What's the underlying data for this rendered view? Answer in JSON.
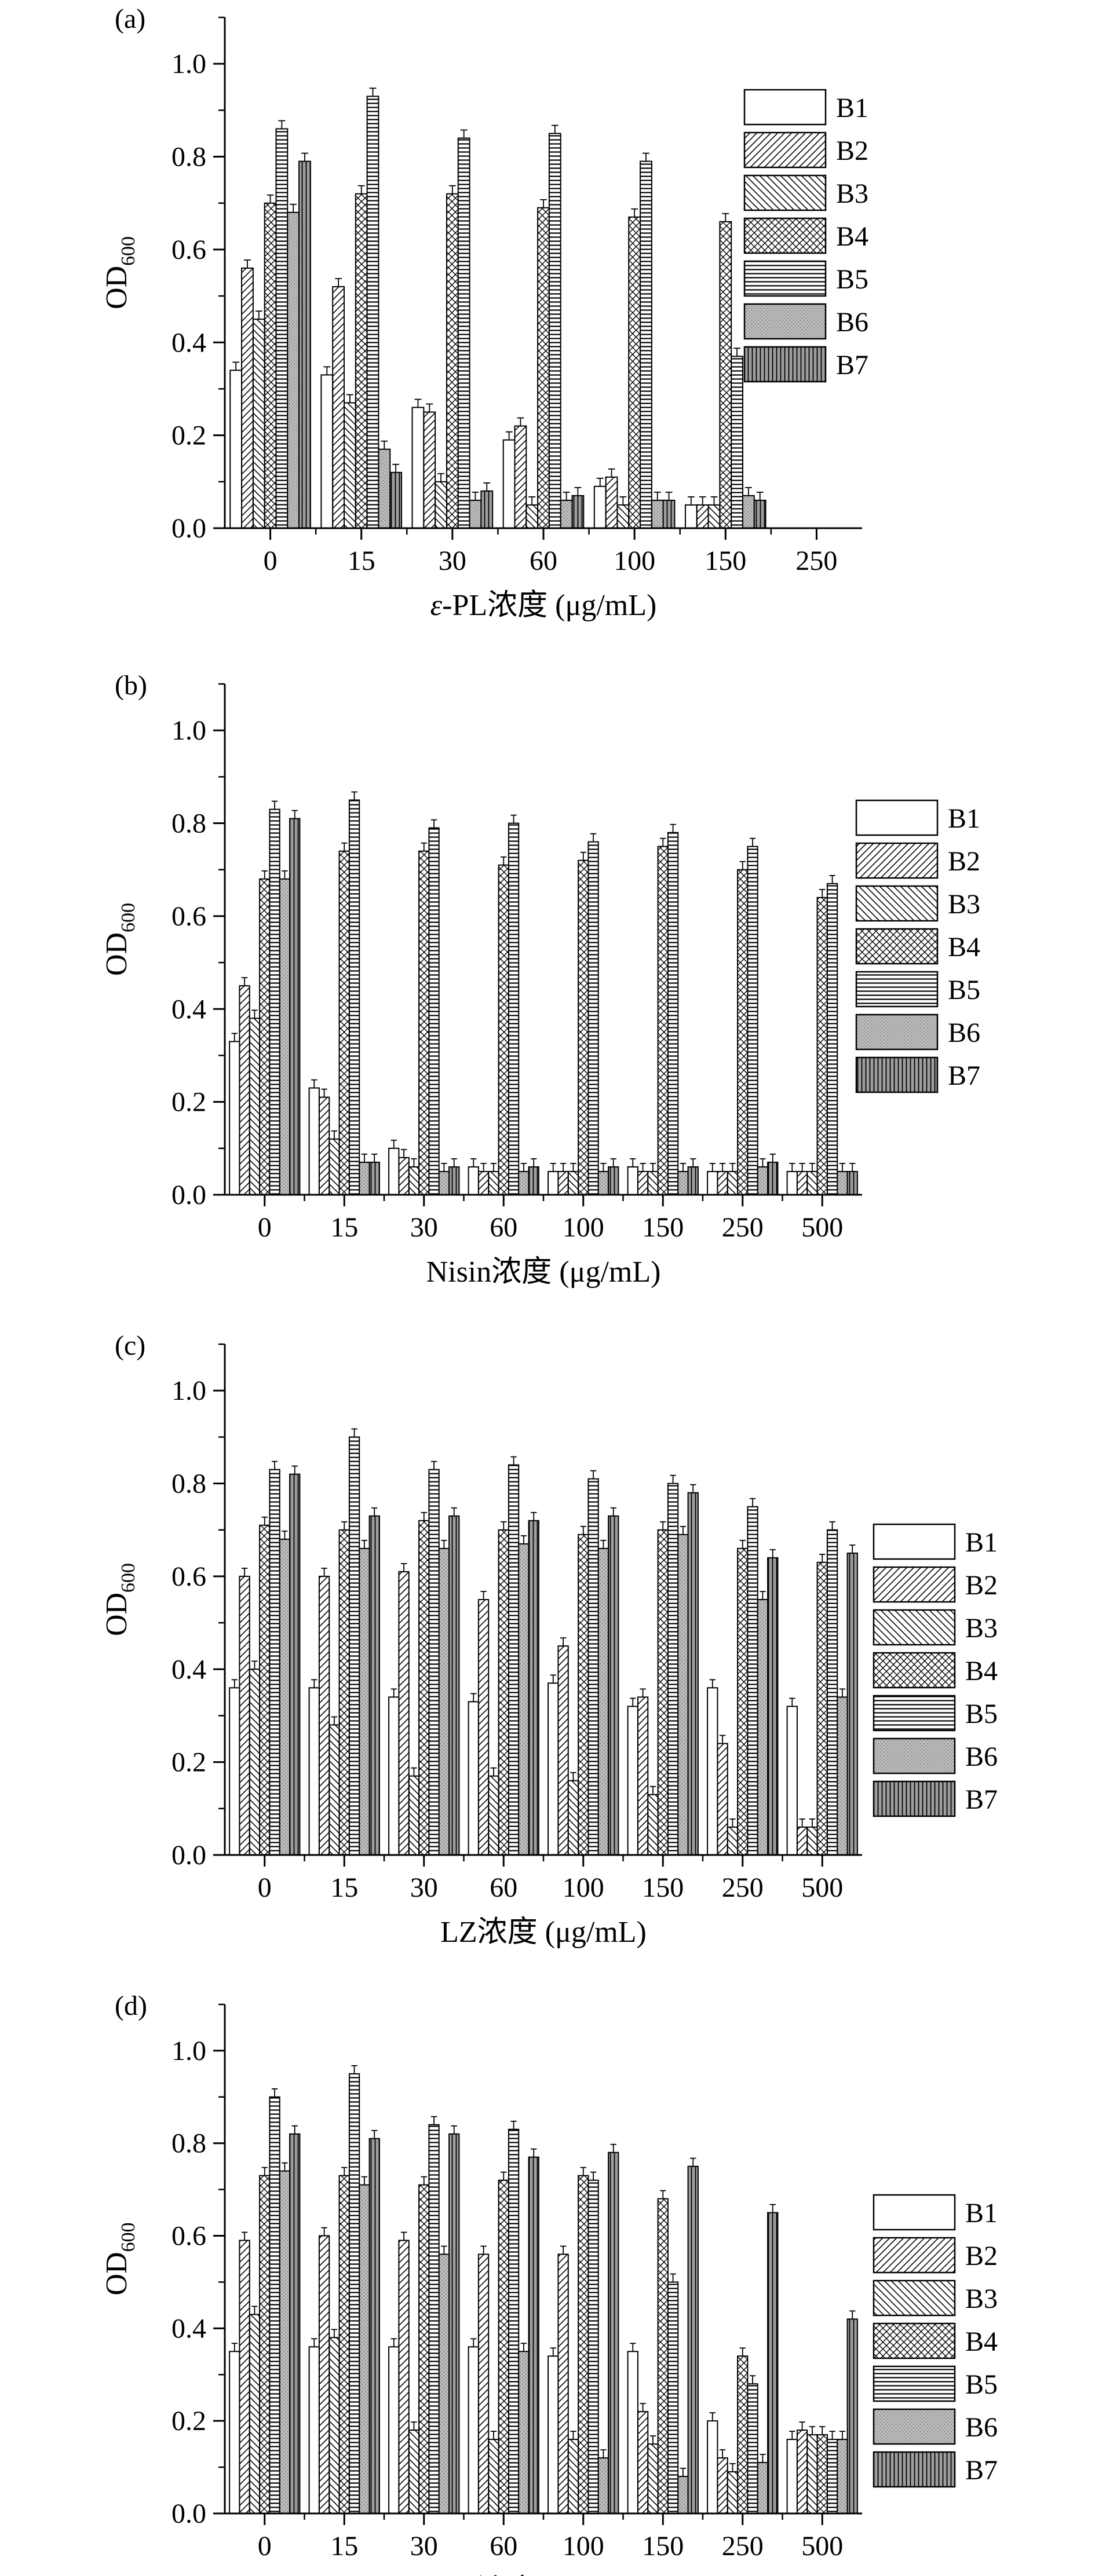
{
  "figure": {
    "ylabel_main": "OD",
    "ylabel_sub": "600",
    "legend_entries": [
      "B1",
      "B2",
      "B3",
      "B4",
      "B5",
      "B6",
      "B7"
    ],
    "series_patterns": [
      "blank",
      "diag-up",
      "diag-down",
      "cross",
      "horizontal",
      "dots",
      "vertical"
    ]
  },
  "chart_data": [
    {
      "type": "bar",
      "panel_label": "(a)",
      "xlabel_italic": "ε",
      "xlabel": "-PL浓度 (μg/mL)",
      "ylabel": "OD600",
      "ylim": [
        0,
        1.1
      ],
      "yticks": [
        "0.0",
        "0.2",
        "0.4",
        "0.6",
        "0.8",
        "1.0"
      ],
      "legend": "top-right",
      "categories": [
        "0",
        "15",
        "30",
        "60",
        "100",
        "150",
        "250"
      ],
      "series": [
        {
          "name": "B1",
          "values": [
            0.34,
            0.33,
            0.26,
            0.19,
            0.09,
            0.05,
            0.0
          ]
        },
        {
          "name": "B2",
          "values": [
            0.56,
            0.52,
            0.25,
            0.22,
            0.11,
            0.05,
            0.0
          ]
        },
        {
          "name": "B3",
          "values": [
            0.45,
            0.27,
            0.1,
            0.05,
            0.05,
            0.05,
            0.0
          ]
        },
        {
          "name": "B4",
          "values": [
            0.7,
            0.72,
            0.72,
            0.69,
            0.67,
            0.66,
            0.0
          ]
        },
        {
          "name": "B5",
          "values": [
            0.86,
            0.93,
            0.84,
            0.85,
            0.79,
            0.37,
            0.0
          ]
        },
        {
          "name": "B6",
          "values": [
            0.68,
            0.17,
            0.06,
            0.06,
            0.06,
            0.07,
            0.0
          ]
        },
        {
          "name": "B7",
          "values": [
            0.79,
            0.12,
            0.08,
            0.07,
            0.06,
            0.06,
            0.0
          ]
        }
      ]
    },
    {
      "type": "bar",
      "panel_label": "(b)",
      "xlabel_italic": "",
      "xlabel": "Nisin浓度 (μg/mL)",
      "ylabel": "OD600",
      "ylim": [
        0,
        1.1
      ],
      "yticks": [
        "0.0",
        "0.2",
        "0.4",
        "0.6",
        "0.8",
        "1.0"
      ],
      "legend": "right",
      "categories": [
        "0",
        "15",
        "30",
        "60",
        "100",
        "150",
        "250",
        "500"
      ],
      "series": [
        {
          "name": "B1",
          "values": [
            0.33,
            0.23,
            0.1,
            0.06,
            0.05,
            0.06,
            0.05,
            0.05
          ]
        },
        {
          "name": "B2",
          "values": [
            0.45,
            0.21,
            0.08,
            0.05,
            0.05,
            0.05,
            0.05,
            0.05
          ]
        },
        {
          "name": "B3",
          "values": [
            0.38,
            0.12,
            0.06,
            0.05,
            0.05,
            0.05,
            0.05,
            0.05
          ]
        },
        {
          "name": "B4",
          "values": [
            0.68,
            0.74,
            0.74,
            0.71,
            0.72,
            0.75,
            0.7,
            0.64
          ]
        },
        {
          "name": "B5",
          "values": [
            0.83,
            0.85,
            0.79,
            0.8,
            0.76,
            0.78,
            0.75,
            0.67
          ]
        },
        {
          "name": "B6",
          "values": [
            0.68,
            0.07,
            0.05,
            0.05,
            0.05,
            0.05,
            0.06,
            0.05
          ]
        },
        {
          "name": "B7",
          "values": [
            0.81,
            0.07,
            0.06,
            0.06,
            0.06,
            0.06,
            0.07,
            0.05
          ]
        }
      ]
    },
    {
      "type": "bar",
      "panel_label": "(c)",
      "xlabel_italic": "",
      "xlabel": "LZ浓度 (μg/mL)",
      "ylabel": "OD600",
      "ylim": [
        0,
        1.1
      ],
      "yticks": [
        "0.0",
        "0.2",
        "0.4",
        "0.6",
        "0.8",
        "1.0"
      ],
      "legend": "right",
      "categories": [
        "0",
        "15",
        "30",
        "60",
        "100",
        "150",
        "250",
        "500"
      ],
      "series": [
        {
          "name": "B1",
          "values": [
            0.36,
            0.36,
            0.34,
            0.33,
            0.37,
            0.32,
            0.36,
            0.32
          ]
        },
        {
          "name": "B2",
          "values": [
            0.6,
            0.6,
            0.61,
            0.55,
            0.45,
            0.34,
            0.24,
            0.06
          ]
        },
        {
          "name": "B3",
          "values": [
            0.4,
            0.28,
            0.17,
            0.17,
            0.16,
            0.13,
            0.06,
            0.06
          ]
        },
        {
          "name": "B4",
          "values": [
            0.71,
            0.7,
            0.72,
            0.7,
            0.69,
            0.7,
            0.66,
            0.63
          ]
        },
        {
          "name": "B5",
          "values": [
            0.83,
            0.9,
            0.83,
            0.84,
            0.81,
            0.8,
            0.75,
            0.7
          ]
        },
        {
          "name": "B6",
          "values": [
            0.68,
            0.66,
            0.66,
            0.67,
            0.66,
            0.69,
            0.55,
            0.34
          ]
        },
        {
          "name": "B7",
          "values": [
            0.82,
            0.73,
            0.73,
            0.72,
            0.73,
            0.78,
            0.64,
            0.65
          ]
        }
      ]
    },
    {
      "type": "bar",
      "panel_label": "(d)",
      "xlabel_italic": "",
      "xlabel": "TP浓度 (μg/mL)",
      "ylabel": "OD600",
      "ylim": [
        0,
        1.1
      ],
      "yticks": [
        "0.0",
        "0.2",
        "0.4",
        "0.6",
        "0.8",
        "1.0"
      ],
      "legend": "right",
      "categories": [
        "0",
        "15",
        "30",
        "60",
        "100",
        "150",
        "250",
        "500"
      ],
      "series": [
        {
          "name": "B1",
          "values": [
            0.35,
            0.36,
            0.36,
            0.36,
            0.34,
            0.35,
            0.2,
            0.16
          ]
        },
        {
          "name": "B2",
          "values": [
            0.59,
            0.6,
            0.59,
            0.56,
            0.56,
            0.22,
            0.12,
            0.18
          ]
        },
        {
          "name": "B3",
          "values": [
            0.43,
            0.38,
            0.18,
            0.16,
            0.16,
            0.15,
            0.09,
            0.17
          ]
        },
        {
          "name": "B4",
          "values": [
            0.73,
            0.73,
            0.71,
            0.72,
            0.73,
            0.68,
            0.34,
            0.17
          ]
        },
        {
          "name": "B5",
          "values": [
            0.9,
            0.95,
            0.84,
            0.83,
            0.72,
            0.5,
            0.28,
            0.16
          ]
        },
        {
          "name": "B6",
          "values": [
            0.74,
            0.71,
            0.56,
            0.35,
            0.12,
            0.08,
            0.11,
            0.16
          ]
        },
        {
          "name": "B7",
          "values": [
            0.82,
            0.81,
            0.82,
            0.77,
            0.78,
            0.75,
            0.65,
            0.42
          ]
        }
      ]
    }
  ]
}
